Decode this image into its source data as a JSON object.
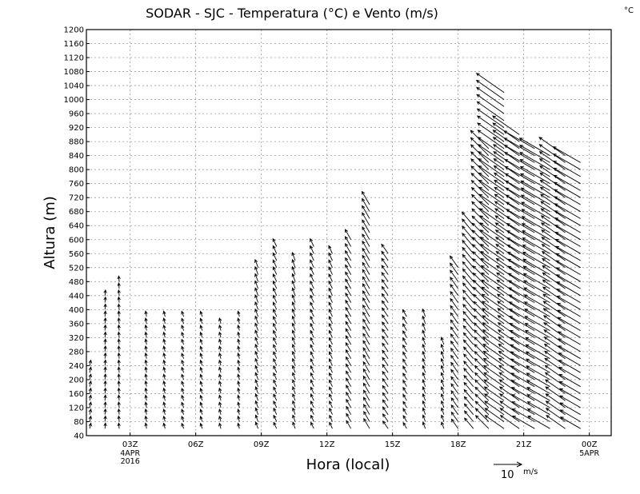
{
  "chart_data": {
    "type": "vector",
    "title": "SODAR - SJC - Temperatura (°C) e Vento (m/s)",
    "corner_unit": "°C",
    "xlabel": "Hora (local)",
    "ylabel": "Altura (m)",
    "xlim": [
      0,
      24
    ],
    "ylim": [
      40,
      1200
    ],
    "yticks": [
      40,
      80,
      120,
      160,
      200,
      240,
      280,
      320,
      360,
      400,
      440,
      480,
      520,
      560,
      600,
      640,
      680,
      720,
      760,
      800,
      840,
      880,
      920,
      960,
      1000,
      1040,
      1080,
      1120,
      1160,
      1200
    ],
    "xticks": [
      {
        "x": 2,
        "label": "03Z",
        "sub": [
          "4APR",
          "2016"
        ]
      },
      {
        "x": 5,
        "label": "06Z",
        "sub": []
      },
      {
        "x": 8,
        "label": "09Z",
        "sub": []
      },
      {
        "x": 11,
        "label": "12Z",
        "sub": []
      },
      {
        "x": 14,
        "label": "15Z",
        "sub": []
      },
      {
        "x": 17,
        "label": "18Z",
        "sub": []
      },
      {
        "x": 20,
        "label": "21Z",
        "sub": []
      },
      {
        "x": 23,
        "label": "00Z",
        "sub": [
          "5APR"
        ]
      }
    ],
    "grid": true,
    "reference_vector": {
      "speed": 10,
      "label": "10",
      "unit": "m/s"
    },
    "profiles": [
      {
        "t": 0.15,
        "top": 240,
        "dir": 12,
        "spd": 2
      },
      {
        "t": 0.85,
        "top": 440,
        "dir": 5,
        "spd": 2
      },
      {
        "t": 1.5,
        "top": 480,
        "dir": 355,
        "spd": 2
      },
      {
        "t": 2.75,
        "top": 380,
        "dir": 350,
        "spd": 2
      },
      {
        "t": 3.6,
        "top": 380,
        "dir": 345,
        "spd": 2
      },
      {
        "t": 4.45,
        "top": 380,
        "dir": 340,
        "spd": 2
      },
      {
        "t": 5.3,
        "top": 380,
        "dir": 340,
        "spd": 2
      },
      {
        "t": 6.15,
        "top": 360,
        "dir": 345,
        "spd": 2
      },
      {
        "t": 7.0,
        "top": 380,
        "dir": 345,
        "spd": 2
      },
      {
        "t": 7.85,
        "top": 520,
        "dir": 340,
        "spd": 3
      },
      {
        "t": 8.7,
        "top": 580,
        "dir": 335,
        "spd": 3
      },
      {
        "t": 9.55,
        "top": 540,
        "dir": 340,
        "spd": 3
      },
      {
        "t": 10.4,
        "top": 580,
        "dir": 335,
        "spd": 3
      },
      {
        "t": 11.25,
        "top": 560,
        "dir": 335,
        "spd": 3
      },
      {
        "t": 12.1,
        "top": 600,
        "dir": 330,
        "spd": 4
      },
      {
        "t": 12.95,
        "top": 700,
        "dir": 330,
        "spd": 5
      },
      {
        "t": 13.8,
        "top": 560,
        "dir": 325,
        "spd": 4
      },
      {
        "t": 14.65,
        "top": 380,
        "dir": 330,
        "spd": 3
      },
      {
        "t": 15.5,
        "top": 380,
        "dir": 340,
        "spd": 3
      },
      {
        "t": 16.35,
        "top": 300,
        "dir": 340,
        "spd": 3
      },
      {
        "t": 17.0,
        "top": 520,
        "dir": 325,
        "spd": 5
      },
      {
        "t": 17.7,
        "top": 640,
        "dir": 320,
        "spd": 6
      },
      {
        "t": 18.4,
        "top": 860,
        "dir": 315,
        "spd": 8
      },
      {
        "t": 19.1,
        "top": 1030,
        "dir": 305,
        "spd": 10
      },
      {
        "t": 19.8,
        "top": 900,
        "dir": 305,
        "spd": 10
      },
      {
        "t": 20.5,
        "top": 860,
        "dir": 300,
        "spd": 11
      },
      {
        "t": 21.2,
        "top": 840,
        "dir": 300,
        "spd": 11
      },
      {
        "t": 21.9,
        "top": 840,
        "dir": 305,
        "spd": 10
      },
      {
        "t": 22.6,
        "top": 820,
        "dir": 300,
        "spd": 10
      }
    ]
  }
}
